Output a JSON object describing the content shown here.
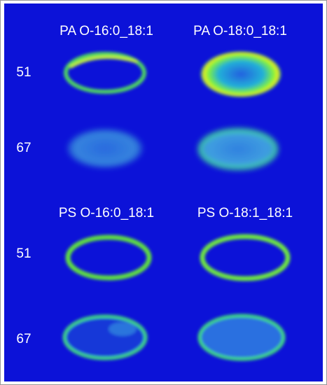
{
  "panels": [
    {
      "columns": [
        "PA O-16:0_18:1",
        "PA O-18:0_18:1"
      ],
      "rows": [
        "51",
        "67"
      ]
    },
    {
      "columns": [
        "PS O-16:0_18:1",
        "PS O-18:1_18:1"
      ],
      "rows": [
        "51",
        "67"
      ]
    }
  ]
}
